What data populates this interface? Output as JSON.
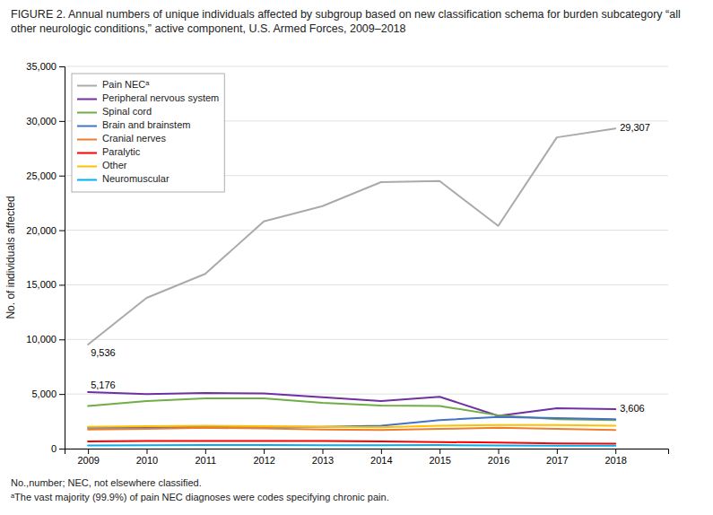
{
  "chart_data": {
    "type": "line",
    "title": "FIGURE 2. Annual numbers of unique individuals affected by subgroup based on new classification schema for burden subcategory “all other neurologic conditions,” active component, U.S. Armed Forces, 2009–2018",
    "y_label": "No. of individuals affected",
    "x": [
      2009,
      2010,
      2011,
      2012,
      2013,
      2014,
      2015,
      2016,
      2017,
      2018
    ],
    "series": [
      {
        "name": "Pain NECᵃ",
        "color": "#AAAAAA",
        "values": [
          9536,
          13800,
          16000,
          20800,
          22200,
          24400,
          24500,
          20400,
          28500,
          29307
        ]
      },
      {
        "name": "Peripheral nervous system",
        "color": "#7030A0",
        "values": [
          5176,
          5000,
          5100,
          5050,
          4700,
          4350,
          4750,
          3000,
          3700,
          3606
        ]
      },
      {
        "name": "Spinal cord",
        "color": "#70AD47",
        "values": [
          3900,
          4350,
          4600,
          4600,
          4200,
          3950,
          3900,
          3050,
          2700,
          2600
        ]
      },
      {
        "name": "Brain and brainstem",
        "color": "#4472C4",
        "values": [
          1900,
          1900,
          2000,
          2000,
          2000,
          2100,
          2600,
          2900,
          2800,
          2700
        ]
      },
      {
        "name": "Cranial nerves",
        "color": "#ED7D31",
        "values": [
          1750,
          1800,
          1900,
          1850,
          1750,
          1700,
          1800,
          1900,
          1800,
          1700
        ]
      },
      {
        "name": "Paralytic",
        "color": "#FF0000",
        "values": [
          650,
          700,
          700,
          700,
          700,
          650,
          600,
          550,
          480,
          450
        ]
      },
      {
        "name": "Other",
        "color": "#FFC000",
        "values": [
          2000,
          2050,
          2100,
          2050,
          2000,
          1950,
          2100,
          2150,
          2150,
          2100
        ]
      },
      {
        "name": "Neuromuscular",
        "color": "#00B0F0",
        "values": [
          280,
          300,
          320,
          320,
          310,
          310,
          320,
          280,
          270,
          260
        ]
      }
    ],
    "xlim": [
      2008.6,
      2018.9
    ],
    "xticks": [
      2009,
      2010,
      2011,
      2012,
      2013,
      2014,
      2015,
      2016,
      2017,
      2018
    ],
    "ylim": [
      0,
      35000
    ],
    "yticks": [
      0,
      {
        "value": 5000,
        "label": "5,000"
      },
      {
        "value": 10000,
        "label": "10,000"
      },
      {
        "value": 15000,
        "label": "15,000"
      },
      {
        "value": 20000,
        "label": "20,000"
      },
      {
        "value": 25000,
        "label": "25,000"
      },
      {
        "value": 30000,
        "label": "30,000"
      },
      {
        "value": 35000,
        "label": "35,000"
      }
    ],
    "grid": true,
    "legend": "upper left",
    "annotations": [
      {
        "text": "9,536",
        "x": 2009,
        "y": 9536
      },
      {
        "text": "5,176",
        "x": 2009,
        "y": 5176
      },
      {
        "text": "29,307",
        "x": 2018,
        "y": 29307
      },
      {
        "text": "3,606",
        "x": 2018,
        "y": 3606
      }
    ],
    "notes": [
      "No.,number; NEC, not elsewhere classified.",
      "ᵃThe vast majority (99.9%) of pain NEC diagnoses were codes specifying chronic pain."
    ]
  }
}
